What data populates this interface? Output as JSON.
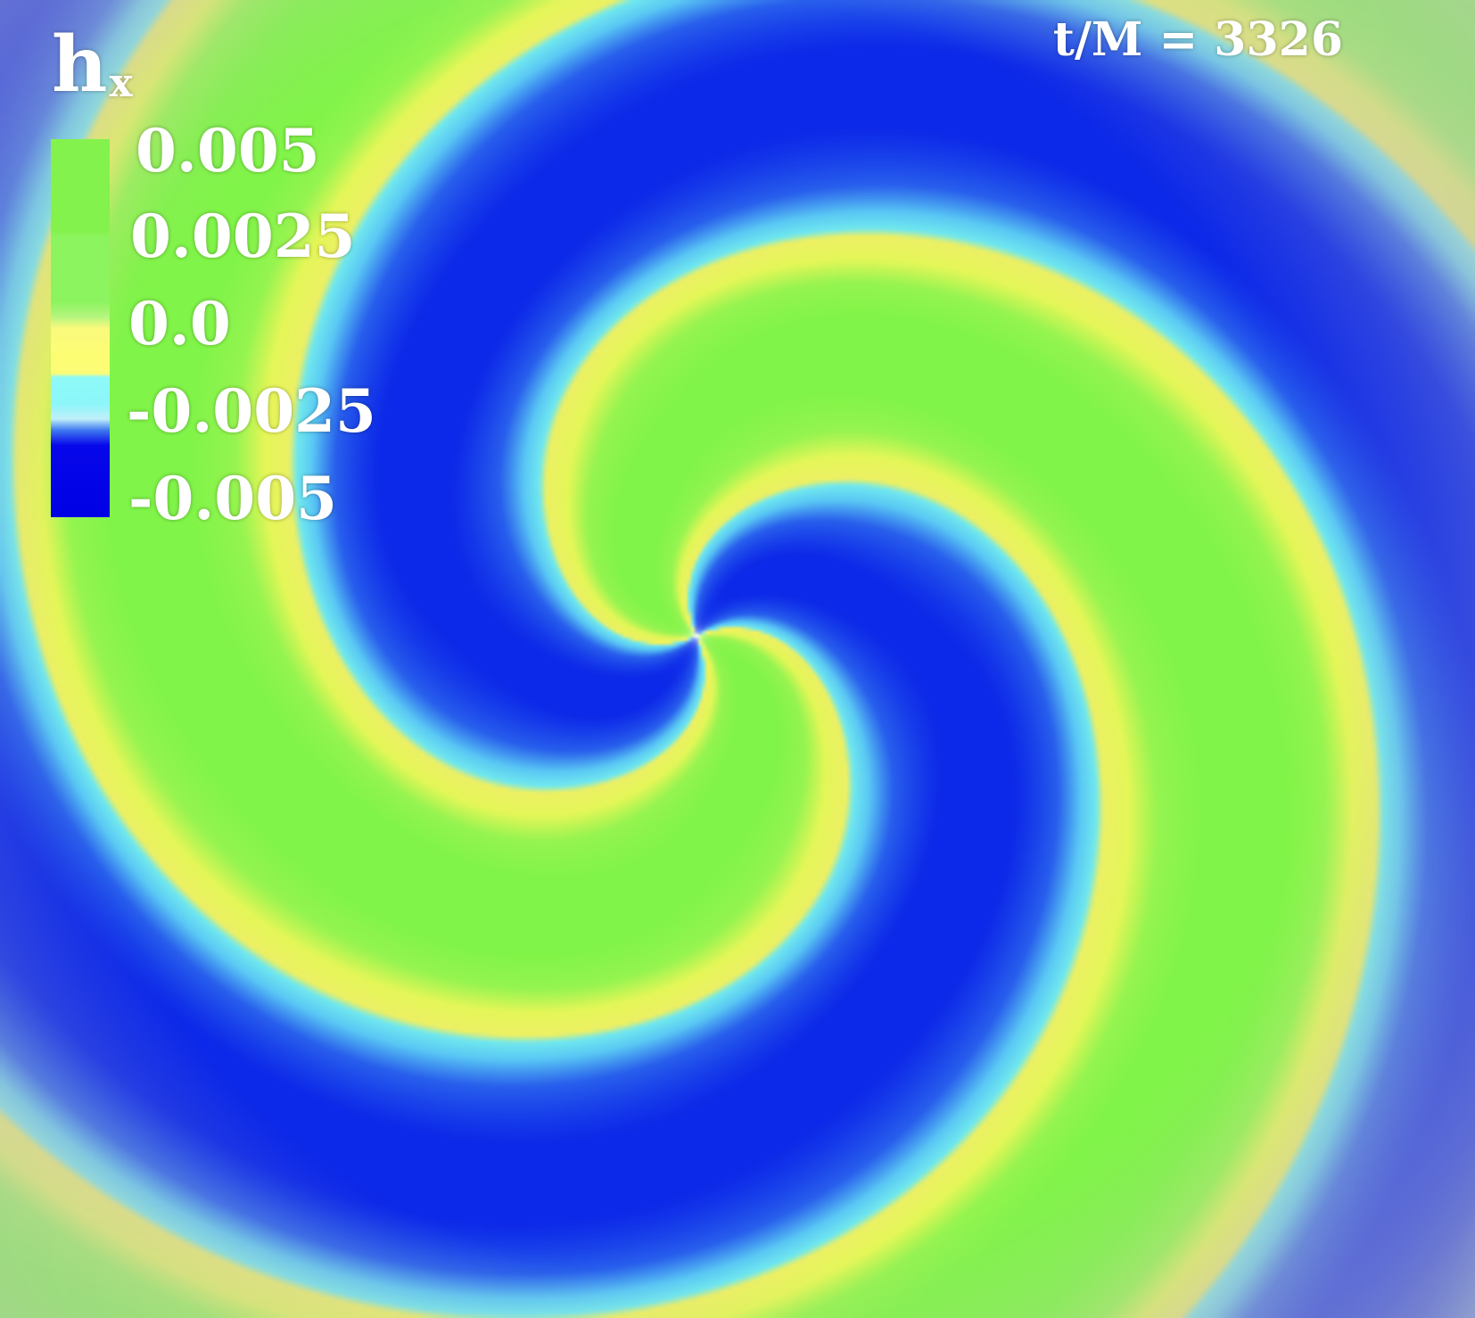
{
  "variable": {
    "main": "h",
    "subscript": "x"
  },
  "time_label": "t/M = 3326",
  "colorbar": {
    "ticks": [
      {
        "value": 0.005,
        "label": "0.005"
      },
      {
        "value": 0.0025,
        "label": "0.0025"
      },
      {
        "value": 0.0,
        "label": "0.0"
      },
      {
        "value": -0.0025,
        "label": "-0.0025"
      },
      {
        "value": -0.005,
        "label": "-0.005"
      }
    ]
  },
  "colors": {
    "background": "#bfbfbf",
    "positive_high": "#84f24c",
    "positive_low": "#f2f260",
    "negative_low": "#6fe8ee",
    "negative_high": "#1030e8"
  }
}
